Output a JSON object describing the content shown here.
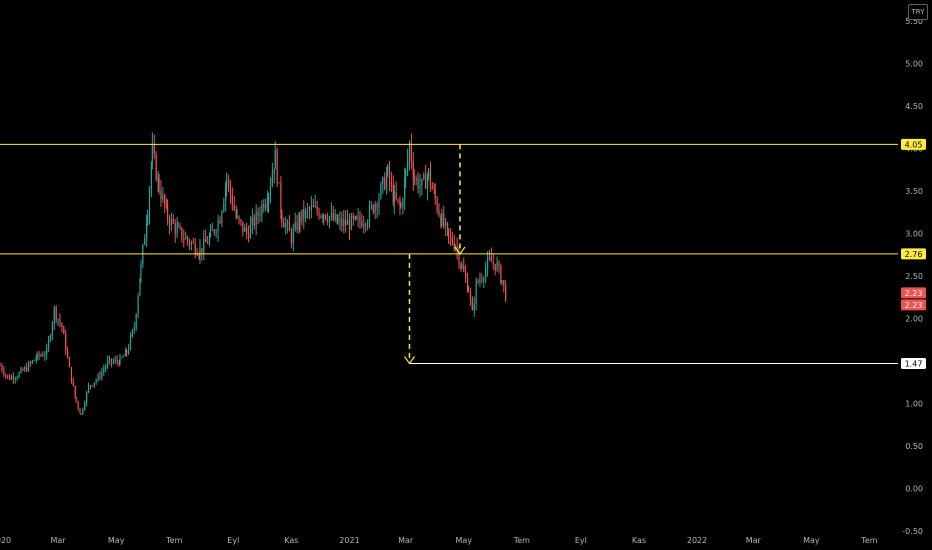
{
  "currency_button": {
    "label": "TRY"
  },
  "chart_data": {
    "type": "candlestick",
    "y_axis": {
      "ticks": [
        "5.50",
        "5.00",
        "4.50",
        "4.00",
        "3.50",
        "3.00",
        "2.50",
        "2.00",
        "1.50",
        "1.00",
        "0.50",
        "0.00",
        "-0.50"
      ],
      "ylim": [
        -0.55,
        5.75
      ]
    },
    "x_axis": {
      "ticks": [
        "2020",
        "Mar",
        "May",
        "Tem",
        "Eyl",
        "Kas",
        "2021",
        "Mar",
        "May",
        "Tem",
        "Eyl",
        "Kas",
        "2022",
        "Mar",
        "May",
        "Tem"
      ],
      "xlim": [
        "2019-12-31",
        "2022-07-31"
      ]
    },
    "price_series": {
      "name": "",
      "up_color": "#26a69a",
      "down_color": "#ef5350",
      "points": [
        [
          "2019-12-31",
          1.45
        ],
        [
          "2020-01-08",
          1.3
        ],
        [
          "2020-01-18",
          1.33
        ],
        [
          "2020-01-28",
          1.42
        ],
        [
          "2020-02-08",
          1.55
        ],
        [
          "2020-02-18",
          1.6
        ],
        [
          "2020-02-26",
          2.1
        ],
        [
          "2020-03-05",
          1.9
        ],
        [
          "2020-03-13",
          1.4
        ],
        [
          "2020-03-20",
          1.02
        ],
        [
          "2020-03-25",
          0.87
        ],
        [
          "2020-04-02",
          1.2
        ],
        [
          "2020-04-12",
          1.3
        ],
        [
          "2020-04-22",
          1.48
        ],
        [
          "2020-05-05",
          1.5
        ],
        [
          "2020-05-12",
          1.6
        ],
        [
          "2020-05-20",
          1.9
        ],
        [
          "2020-05-27",
          2.6
        ],
        [
          "2020-06-03",
          3.3
        ],
        [
          "2020-06-08",
          3.95
        ],
        [
          "2020-06-15",
          3.55
        ],
        [
          "2020-06-24",
          3.2
        ],
        [
          "2020-07-05",
          3.02
        ],
        [
          "2020-07-15",
          2.92
        ],
        [
          "2020-07-28",
          2.8
        ],
        [
          "2020-08-08",
          2.96
        ],
        [
          "2020-08-18",
          3.2
        ],
        [
          "2020-08-25",
          3.65
        ],
        [
          "2020-09-05",
          3.15
        ],
        [
          "2020-09-15",
          3.0
        ],
        [
          "2020-09-25",
          3.18
        ],
        [
          "2020-10-08",
          3.5
        ],
        [
          "2020-10-15",
          3.9
        ],
        [
          "2020-10-22",
          3.2
        ],
        [
          "2020-11-01",
          2.95
        ],
        [
          "2020-11-10",
          3.18
        ],
        [
          "2020-11-22",
          3.28
        ],
        [
          "2020-12-05",
          3.25
        ],
        [
          "2020-12-20",
          3.12
        ],
        [
          "2021-01-08",
          3.12
        ],
        [
          "2021-01-20",
          3.2
        ],
        [
          "2021-02-01",
          3.45
        ],
        [
          "2021-02-10",
          3.7
        ],
        [
          "2021-02-17",
          3.4
        ],
        [
          "2021-02-24",
          3.3
        ],
        [
          "2021-03-01",
          3.7
        ],
        [
          "2021-03-05",
          4.05
        ],
        [
          "2021-03-10",
          3.65
        ],
        [
          "2021-03-18",
          3.55
        ],
        [
          "2021-03-25",
          3.7
        ],
        [
          "2021-04-01",
          3.4
        ],
        [
          "2021-04-08",
          3.15
        ],
        [
          "2021-04-15",
          2.95
        ],
        [
          "2021-04-22",
          2.88
        ],
        [
          "2021-04-29",
          2.6
        ],
        [
          "2021-05-06",
          2.35
        ],
        [
          "2021-05-10",
          2.05
        ],
        [
          "2021-05-14",
          2.4
        ],
        [
          "2021-05-20",
          2.5
        ],
        [
          "2021-05-28",
          2.68
        ],
        [
          "2021-06-05",
          2.62
        ],
        [
          "2021-06-10",
          2.45
        ],
        [
          "2021-06-15",
          2.23
        ]
      ]
    },
    "horizontal_levels": [
      {
        "value": 4.05,
        "label": "4.05",
        "color": "#ffeb3b",
        "from": "2019-12-31"
      },
      {
        "value": 2.76,
        "label": "2.76",
        "color": "#ffeb3b",
        "from": "2019-12-31"
      },
      {
        "value": 1.47,
        "label": "1.47",
        "color": "#ffffff",
        "from": "2021-03-05"
      }
    ],
    "projections": [
      {
        "date": "2021-04-27",
        "from": 4.05,
        "to": 2.76,
        "color": "#ffeb3b"
      },
      {
        "date": "2021-03-05",
        "from": 2.76,
        "to": 1.47,
        "color": "#ffeb3b"
      }
    ],
    "last_price_labels": [
      "2.23",
      "2.23"
    ],
    "last_price_color": "#ef5350"
  }
}
